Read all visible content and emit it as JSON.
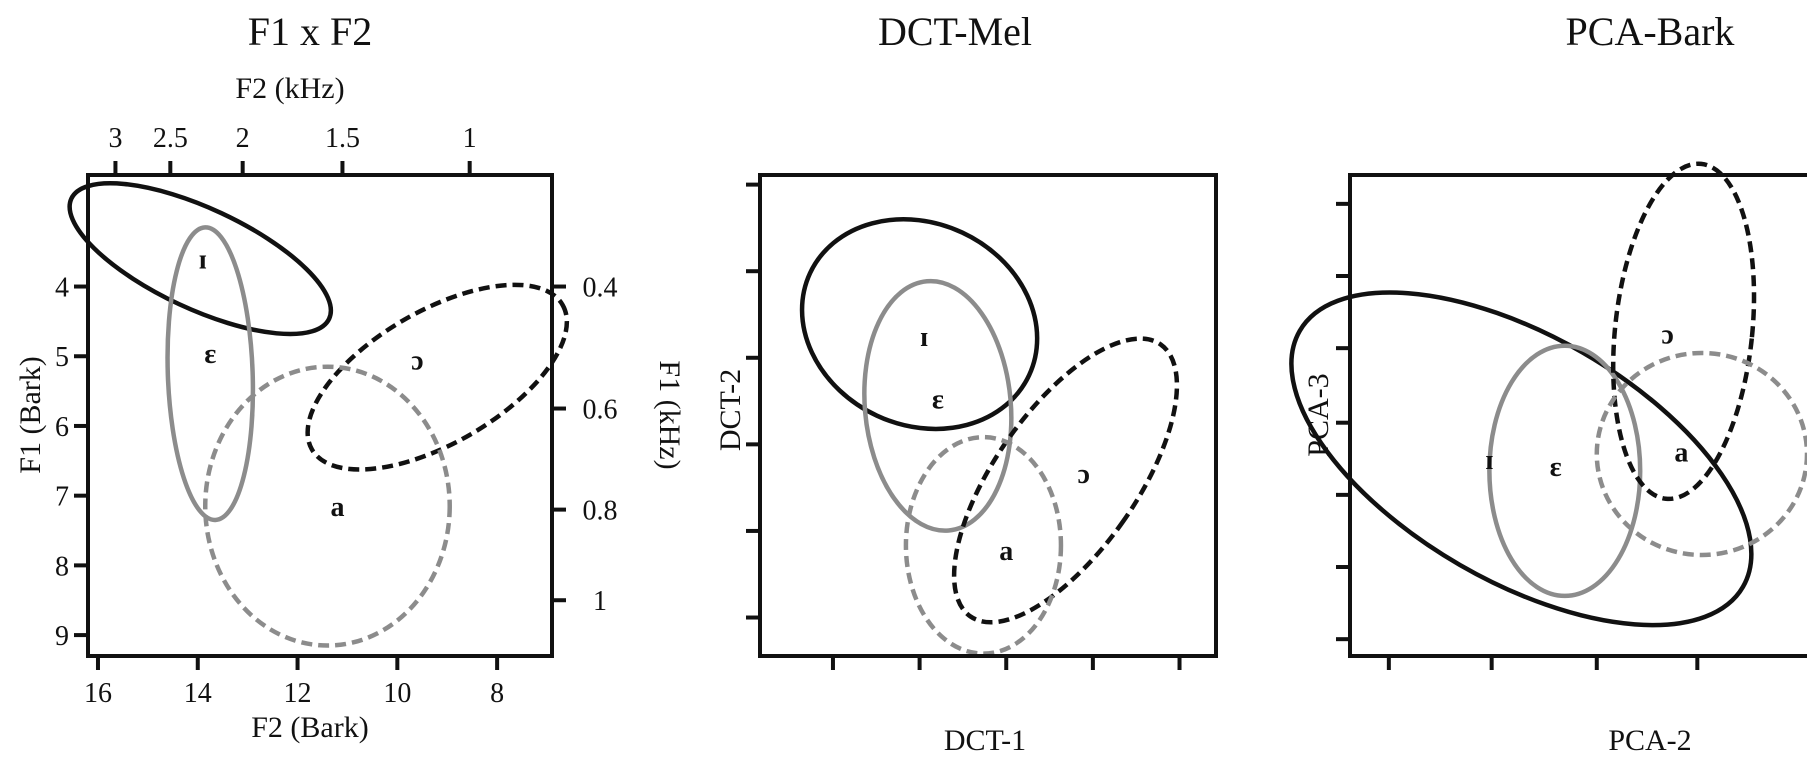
{
  "chart_data": [
    {
      "type": "scatter",
      "title": "F1 x F2",
      "xlabel": "F2 (Bark)",
      "ylabel": "F1 (Bark)",
      "x_top_label": "F2 (kHz)",
      "y_right_label": "F1 (kHz)",
      "xlim": [
        16.2,
        6.9
      ],
      "ylim": [
        2.4,
        9.3
      ],
      "x_ticks": [
        "16",
        "14",
        "12",
        "10",
        "8"
      ],
      "x_tick_values": [
        16,
        14,
        12,
        10,
        8
      ],
      "y_ticks": [
        "4",
        "5",
        "6",
        "7",
        "8",
        "9"
      ],
      "y_tick_values": [
        4,
        5,
        6,
        7,
        8,
        9
      ],
      "x_top_ticks": [
        "3",
        "2.5",
        "2",
        "1.5",
        "1"
      ],
      "x_top_tick_bark": [
        15.65,
        14.55,
        13.1,
        11.1,
        8.55
      ],
      "y_right_ticks": [
        "0.4",
        "0.6",
        "0.8",
        "1"
      ],
      "y_right_tick_bark": [
        4.0,
        5.75,
        7.2,
        8.5
      ],
      "series": [
        {
          "name": "ɪ",
          "color": "#111111",
          "dash": "solid",
          "center": [
            13.95,
            3.6
          ],
          "rx": 2.85,
          "ry": 0.72,
          "angle": 25
        },
        {
          "name": "ɛ",
          "color": "#8c8c8c",
          "dash": "solid",
          "center": [
            13.75,
            5.25
          ],
          "rx": 0.85,
          "ry": 2.1,
          "angle": -2
        },
        {
          "name": "ɔ",
          "color": "#111111",
          "dash": "dashed",
          "center": [
            9.2,
            5.3
          ],
          "rx": 2.9,
          "ry": 0.95,
          "angle": -30
        },
        {
          "name": "a",
          "color": "#8c8c8c",
          "dash": "dashed",
          "center": [
            11.4,
            7.15
          ],
          "rx": 2.45,
          "ry": 2.0,
          "angle": 0
        }
      ],
      "labels": [
        {
          "text": "ɪ",
          "x": 13.9,
          "y": 3.6
        },
        {
          "text": "ɛ",
          "x": 13.75,
          "y": 4.95
        },
        {
          "text": "ɔ",
          "x": 9.6,
          "y": 5.05
        },
        {
          "text": "a",
          "x": 11.2,
          "y": 7.15
        }
      ]
    },
    {
      "type": "scatter",
      "title": "DCT-Mel",
      "xlabel": "DCT-1",
      "ylabel": "DCT-2",
      "xlim": [
        0,
        10
      ],
      "ylim": [
        0,
        10
      ],
      "x_tick_values": [
        1.6,
        3.5,
        5.4,
        7.3,
        9.2
      ],
      "y_tick_values": [
        0.8,
        2.6,
        4.4,
        6.2,
        8.0,
        9.8
      ],
      "series": [
        {
          "name": "ɪ",
          "color": "#111111",
          "dash": "solid",
          "center": [
            3.5,
            6.9
          ],
          "rx": 2.65,
          "ry": 2.1,
          "angle": 25
        },
        {
          "name": "ɛ",
          "color": "#8c8c8c",
          "dash": "solid",
          "center": [
            3.9,
            5.2
          ],
          "rx": 1.6,
          "ry": 2.6,
          "angle": -5
        },
        {
          "name": "ɔ",
          "color": "#111111",
          "dash": "dashed",
          "center": [
            6.7,
            3.65
          ],
          "rx": 1.55,
          "ry": 3.45,
          "angle": 35
        },
        {
          "name": "a",
          "color": "#8c8c8c",
          "dash": "dashed",
          "center": [
            4.9,
            2.3
          ],
          "rx": 1.7,
          "ry": 2.25,
          "angle": 0
        }
      ],
      "labels": [
        {
          "text": "ɪ",
          "x": 3.6,
          "y": 6.65
        },
        {
          "text": "ɛ",
          "x": 3.9,
          "y": 5.35
        },
        {
          "text": "ɔ",
          "x": 7.1,
          "y": 3.8
        },
        {
          "text": "a",
          "x": 5.4,
          "y": 2.2
        }
      ]
    },
    {
      "type": "scatter",
      "title": "PCA-Bark",
      "xlabel": "PCA-2",
      "ylabel": "PCA-3",
      "xlim": [
        0,
        10
      ],
      "ylim": [
        0,
        10
      ],
      "x_tick_values": [
        0.85,
        3.1,
        5.4,
        7.6
      ],
      "y_tick_values": [
        0.35,
        1.85,
        3.35,
        4.85,
        6.4,
        7.9,
        9.4
      ],
      "series": [
        {
          "name": "ɪ",
          "color": "#111111",
          "dash": "solid",
          "center": [
            3.75,
            4.1
          ],
          "rx": 5.6,
          "ry": 2.55,
          "angle": 30
        },
        {
          "name": "ɛ",
          "color": "#8c8c8c",
          "dash": "solid",
          "center": [
            4.7,
            3.85
          ],
          "rx": 1.65,
          "ry": 2.6,
          "angle": 0
        },
        {
          "name": "ɔ",
          "color": "#111111",
          "dash": "dashed",
          "center": [
            7.3,
            6.75
          ],
          "rx": 1.5,
          "ry": 3.5,
          "angle": 6
        },
        {
          "name": "a",
          "color": "#8c8c8c",
          "dash": "dashed",
          "center": [
            7.7,
            4.2
          ],
          "rx": 2.3,
          "ry": 2.1,
          "angle": 0
        }
      ],
      "labels": [
        {
          "text": "ɪ",
          "x": 3.05,
          "y": 4.1
        },
        {
          "text": "ɛ",
          "x": 4.5,
          "y": 3.95
        },
        {
          "text": "ɔ",
          "x": 6.95,
          "y": 6.7
        },
        {
          "text": "a",
          "x": 7.25,
          "y": 4.25
        }
      ]
    }
  ]
}
